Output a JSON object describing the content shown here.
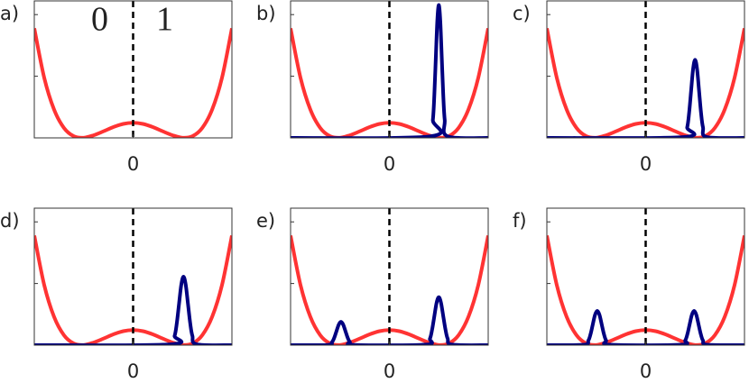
{
  "chart_data": [
    {
      "type": "line",
      "label": "a)",
      "region_labels": [
        "0",
        "1"
      ],
      "vline": 0,
      "xlim": [
        -1,
        1
      ],
      "ylim": [
        0,
        1
      ],
      "xticks": [
        0
      ],
      "yticks": [
        0.45,
        0.9
      ],
      "series": [
        {
          "color": "#ff3333",
          "x": [
            -1,
            -0.9,
            -0.8,
            -0.7,
            -0.6,
            -0.5,
            -0.4,
            -0.3,
            -0.2,
            -0.1,
            0,
            0.1,
            0.2,
            0.3,
            0.4,
            0.5,
            0.6,
            0.7,
            0.8,
            0.9,
            1
          ],
          "values": [
            0.8,
            0.44,
            0.207,
            0.073,
            0.012,
            0.001,
            0.019,
            0.048,
            0.079,
            0.102,
            0.11,
            0.102,
            0.079,
            0.048,
            0.019,
            0.001,
            0.012,
            0.073,
            0.207,
            0.44,
            0.8
          ]
        }
      ]
    },
    {
      "type": "line",
      "label": "b)",
      "vline": 0,
      "xlim": [
        -1,
        1
      ],
      "ylim": [
        0,
        1
      ],
      "xticks": [
        0
      ],
      "yticks": [
        0.45,
        0.9
      ],
      "series": [
        {
          "color": "#ff3333",
          "x": [
            -1,
            -0.9,
            -0.8,
            -0.7,
            -0.6,
            -0.5,
            -0.4,
            -0.3,
            -0.2,
            -0.1,
            0,
            0.1,
            0.2,
            0.3,
            0.4,
            0.5,
            0.6,
            0.7,
            0.8,
            0.9,
            1
          ],
          "values": [
            0.8,
            0.44,
            0.207,
            0.073,
            0.012,
            0.001,
            0.019,
            0.048,
            0.079,
            0.102,
            0.11,
            0.102,
            0.079,
            0.048,
            0.019,
            0.001,
            0.012,
            0.073,
            0.207,
            0.44,
            0.8
          ]
        },
        {
          "color": "#000080",
          "x": [
            -1,
            0.41,
            0.44,
            0.455,
            0.47,
            0.485,
            0.5,
            0.515,
            0.53,
            0.545,
            0.56,
            0.59,
            1
          ],
          "values": [
            0,
            0.011,
            0.131,
            0.315,
            0.588,
            0.856,
            0.97,
            0.856,
            0.588,
            0.315,
            0.131,
            0.011,
            0
          ]
        }
      ]
    },
    {
      "type": "line",
      "label": "c)",
      "vline": 0,
      "xlim": [
        -1,
        1
      ],
      "ylim": [
        0,
        1
      ],
      "xticks": [
        0
      ],
      "yticks": [
        0.45,
        0.9
      ],
      "series": [
        {
          "color": "#ff3333",
          "x": [
            -1,
            -0.9,
            -0.8,
            -0.7,
            -0.6,
            -0.5,
            -0.4,
            -0.3,
            -0.2,
            -0.1,
            0,
            0.1,
            0.2,
            0.3,
            0.4,
            0.5,
            0.6,
            0.7,
            0.8,
            0.9,
            1
          ],
          "values": [
            0.8,
            0.44,
            0.207,
            0.073,
            0.012,
            0.001,
            0.019,
            0.048,
            0.079,
            0.102,
            0.11,
            0.102,
            0.079,
            0.048,
            0.019,
            0.001,
            0.012,
            0.073,
            0.207,
            0.44,
            0.8
          ]
        },
        {
          "color": "#000080",
          "x": [
            -1,
            0.38,
            0.42,
            0.44,
            0.46,
            0.48,
            0.5,
            0.52,
            0.54,
            0.56,
            0.58,
            0.62,
            1
          ],
          "values": [
            0,
            0.006,
            0.077,
            0.185,
            0.346,
            0.503,
            0.57,
            0.503,
            0.346,
            0.185,
            0.077,
            0.006,
            0
          ]
        }
      ]
    },
    {
      "type": "line",
      "label": "d)",
      "vline": 0,
      "xlim": [
        -1,
        1
      ],
      "ylim": [
        0,
        1
      ],
      "xticks": [
        0
      ],
      "yticks": [
        0.45,
        0.9
      ],
      "series": [
        {
          "color": "#ff3333",
          "x": [
            -1,
            -0.9,
            -0.8,
            -0.7,
            -0.6,
            -0.5,
            -0.4,
            -0.3,
            -0.2,
            -0.1,
            0,
            0.1,
            0.2,
            0.3,
            0.4,
            0.5,
            0.6,
            0.7,
            0.8,
            0.9,
            1
          ],
          "values": [
            0.8,
            0.44,
            0.207,
            0.073,
            0.012,
            0.001,
            0.019,
            0.048,
            0.079,
            0.102,
            0.11,
            0.102,
            0.079,
            0.048,
            0.019,
            0.001,
            0.012,
            0.073,
            0.207,
            0.44,
            0.8
          ]
        },
        {
          "color": "#000080",
          "x": [
            -1,
            0.375,
            0.42,
            0.4425,
            0.465,
            0.4875,
            0.51,
            0.5325,
            0.555,
            0.5775,
            0.6,
            0.645,
            1
          ],
          "values": [
            0,
            0.006,
            0.068,
            0.162,
            0.303,
            0.441,
            0.5,
            0.441,
            0.303,
            0.162,
            0.068,
            0.006,
            0
          ]
        }
      ]
    },
    {
      "type": "line",
      "label": "e)",
      "vline": 0,
      "xlim": [
        -1,
        1
      ],
      "ylim": [
        0,
        1
      ],
      "xticks": [
        0
      ],
      "yticks": [
        0.45,
        0.9
      ],
      "series": [
        {
          "color": "#ff3333",
          "x": [
            -1,
            -0.9,
            -0.8,
            -0.7,
            -0.6,
            -0.5,
            -0.4,
            -0.3,
            -0.2,
            -0.1,
            0,
            0.1,
            0.2,
            0.3,
            0.4,
            0.5,
            0.6,
            0.7,
            0.8,
            0.9,
            1
          ],
          "values": [
            0.8,
            0.44,
            0.207,
            0.073,
            0.012,
            0.001,
            0.019,
            0.048,
            0.079,
            0.102,
            0.11,
            0.102,
            0.079,
            0.048,
            0.019,
            0.001,
            0.012,
            0.073,
            0.207,
            0.44,
            0.8
          ]
        },
        {
          "color": "#000080",
          "x": [
            -1,
            -0.625,
            -0.58,
            -0.5575,
            -0.535,
            -0.5125,
            -0.49,
            -0.4675,
            -0.445,
            -0.4225,
            -0.4,
            -0.355,
            0.365,
            0.41,
            0.4325,
            0.455,
            0.4775,
            0.5,
            0.5225,
            0.545,
            0.5675,
            0.59,
            0.635,
            1
          ],
          "values": [
            0,
            0.002,
            0.023,
            0.055,
            0.103,
            0.15,
            0.17,
            0.15,
            0.103,
            0.055,
            0.023,
            0.002,
            0.004,
            0.047,
            0.114,
            0.212,
            0.309,
            0.35,
            0.309,
            0.212,
            0.114,
            0.047,
            0.004,
            0
          ]
        }
      ]
    },
    {
      "type": "line",
      "label": "f)",
      "vline": 0,
      "xlim": [
        -1,
        1
      ],
      "ylim": [
        0,
        1
      ],
      "xticks": [
        0
      ],
      "yticks": [
        0.45,
        0.9
      ],
      "series": [
        {
          "color": "#ff3333",
          "x": [
            -1,
            -0.9,
            -0.8,
            -0.7,
            -0.6,
            -0.5,
            -0.4,
            -0.3,
            -0.2,
            -0.1,
            0,
            0.1,
            0.2,
            0.3,
            0.4,
            0.5,
            0.6,
            0.7,
            0.8,
            0.9,
            1
          ],
          "values": [
            0.8,
            0.44,
            0.207,
            0.073,
            0.012,
            0.001,
            0.019,
            0.048,
            0.079,
            0.102,
            0.11,
            0.102,
            0.079,
            0.048,
            0.019,
            0.001,
            0.012,
            0.073,
            0.207,
            0.44,
            0.8
          ]
        },
        {
          "color": "#000080",
          "x": [
            -1,
            -0.625,
            -0.58,
            -0.5575,
            -0.535,
            -0.5125,
            -0.49,
            -0.4675,
            -0.445,
            -0.4225,
            -0.4,
            -0.355,
            0.355,
            0.4,
            0.4225,
            0.445,
            0.4675,
            0.49,
            0.5125,
            0.535,
            0.5575,
            0.58,
            0.625,
            1
          ],
          "values": [
            0,
            0.003,
            0.034,
            0.081,
            0.152,
            0.221,
            0.25,
            0.221,
            0.152,
            0.081,
            0.034,
            0.003,
            0.003,
            0.034,
            0.081,
            0.152,
            0.221,
            0.25,
            0.221,
            0.152,
            0.081,
            0.034,
            0.003,
            0
          ]
        }
      ]
    }
  ]
}
